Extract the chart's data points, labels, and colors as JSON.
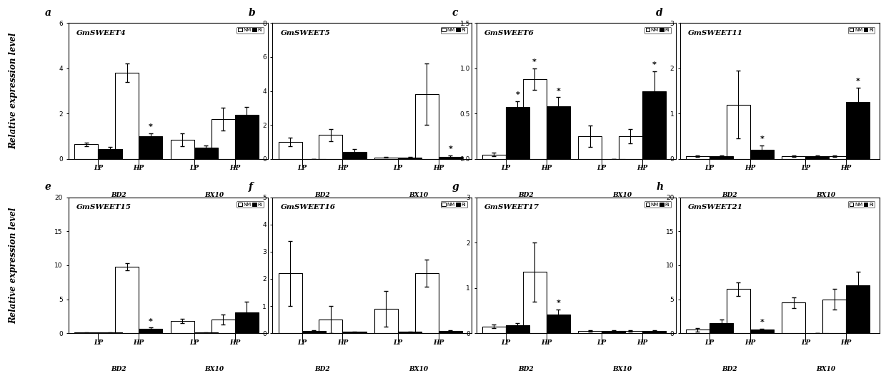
{
  "panels": [
    {
      "label": "a",
      "title": "GmSWEET4",
      "ylim": [
        0,
        6
      ],
      "yticks": [
        0,
        2,
        4,
        6
      ],
      "xticklabels": [
        "LP",
        "HP",
        "LP",
        "HP"
      ],
      "groups": [
        "BD2",
        "BX10"
      ],
      "NM": [
        0.65,
        3.8,
        0.85,
        1.75
      ],
      "Ri": [
        0.45,
        1.0,
        0.5,
        1.95
      ],
      "NM_err": [
        0.08,
        0.42,
        0.28,
        0.5
      ],
      "Ri_err": [
        0.08,
        0.12,
        0.08,
        0.35
      ],
      "star_NM": [
        false,
        false,
        false,
        false
      ],
      "star_Ri": [
        false,
        true,
        false,
        false
      ]
    },
    {
      "label": "b",
      "title": "GmSWEET5",
      "ylim": [
        0,
        8
      ],
      "yticks": [
        0,
        2,
        4,
        6,
        8
      ],
      "xticklabels": [
        "LP",
        "HP",
        "LP",
        "HP"
      ],
      "groups": [
        "BD2",
        "BX10"
      ],
      "NM": [
        1.0,
        1.4,
        0.08,
        3.8
      ],
      "Ri": [
        0.0,
        0.4,
        0.08,
        0.12
      ],
      "NM_err": [
        0.25,
        0.35,
        0.02,
        1.8
      ],
      "Ri_err": [
        0.0,
        0.2,
        0.02,
        0.08
      ],
      "star_NM": [
        false,
        false,
        false,
        false
      ],
      "star_Ri": [
        false,
        false,
        false,
        true
      ]
    },
    {
      "label": "c",
      "title": "GmSWEET6",
      "ylim": [
        0,
        1.5
      ],
      "yticks": [
        0,
        0.5,
        1.0,
        1.5
      ],
      "xticklabels": [
        "LP",
        "HP",
        "LP",
        "HP"
      ],
      "groups": [
        "BD2",
        "BX10"
      ],
      "NM": [
        0.05,
        0.88,
        0.25,
        0.25
      ],
      "Ri": [
        0.57,
        0.58,
        0.0,
        0.75
      ],
      "NM_err": [
        0.02,
        0.12,
        0.12,
        0.08
      ],
      "Ri_err": [
        0.07,
        0.1,
        0.0,
        0.22
      ],
      "star_NM": [
        false,
        true,
        false,
        false
      ],
      "star_Ri": [
        true,
        true,
        false,
        true
      ]
    },
    {
      "label": "d",
      "title": "GmSWEET11",
      "ylim": [
        0,
        3
      ],
      "yticks": [
        0,
        1,
        2,
        3
      ],
      "xticklabels": [
        "LP",
        "HP",
        "LP",
        "HP"
      ],
      "groups": [
        "BD2",
        "BX10"
      ],
      "NM": [
        0.06,
        1.2,
        0.06,
        0.06
      ],
      "Ri": [
        0.06,
        0.2,
        0.06,
        1.25
      ],
      "NM_err": [
        0.02,
        0.75,
        0.02,
        0.02
      ],
      "Ri_err": [
        0.02,
        0.1,
        0.02,
        0.32
      ],
      "star_NM": [
        false,
        false,
        false,
        false
      ],
      "star_Ri": [
        false,
        true,
        false,
        true
      ]
    },
    {
      "label": "e",
      "title": "GmSWEET15",
      "ylim": [
        0,
        20
      ],
      "yticks": [
        0,
        5,
        10,
        15,
        20
      ],
      "xticklabels": [
        "LP",
        "HP",
        "LP",
        "HP"
      ],
      "groups": [
        "BD2",
        "BX10"
      ],
      "NM": [
        0.1,
        9.8,
        1.8,
        2.0
      ],
      "Ri": [
        0.1,
        0.7,
        0.1,
        3.1
      ],
      "NM_err": [
        0.05,
        0.5,
        0.35,
        0.7
      ],
      "Ri_err": [
        0.05,
        0.12,
        0.05,
        1.5
      ],
      "star_NM": [
        false,
        false,
        false,
        false
      ],
      "star_Ri": [
        false,
        true,
        false,
        false
      ]
    },
    {
      "label": "f",
      "title": "GmSWEET16",
      "ylim": [
        0,
        5
      ],
      "yticks": [
        0,
        1,
        2,
        3,
        4,
        5
      ],
      "xticklabels": [
        "LP",
        "HP",
        "LP",
        "HP"
      ],
      "groups": [
        "BD2",
        "BX10"
      ],
      "NM": [
        2.2,
        0.5,
        0.9,
        2.2
      ],
      "Ri": [
        0.08,
        0.05,
        0.05,
        0.08
      ],
      "NM_err": [
        1.2,
        0.5,
        0.65,
        0.5
      ],
      "Ri_err": [
        0.04,
        0.02,
        0.02,
        0.04
      ],
      "star_NM": [
        false,
        false,
        false,
        false
      ],
      "star_Ri": [
        false,
        false,
        false,
        false
      ]
    },
    {
      "label": "g",
      "title": "GmSWEET17",
      "ylim": [
        0,
        3
      ],
      "yticks": [
        0,
        1,
        2,
        3
      ],
      "xticklabels": [
        "LP",
        "HP",
        "LP",
        "HP"
      ],
      "groups": [
        "BD2",
        "BX10"
      ],
      "NM": [
        0.15,
        1.35,
        0.05,
        0.05
      ],
      "Ri": [
        0.18,
        0.42,
        0.05,
        0.05
      ],
      "NM_err": [
        0.04,
        0.65,
        0.02,
        0.02
      ],
      "Ri_err": [
        0.04,
        0.1,
        0.02,
        0.02
      ],
      "star_NM": [
        false,
        false,
        false,
        false
      ],
      "star_Ri": [
        false,
        true,
        false,
        false
      ]
    },
    {
      "label": "h",
      "title": "GmSWEET21",
      "ylim": [
        0,
        20
      ],
      "yticks": [
        0,
        5,
        10,
        15,
        20
      ],
      "xticklabels": [
        "LP",
        "HP",
        "LP",
        "HP"
      ],
      "groups": [
        "BD2",
        "BX10"
      ],
      "NM": [
        0.5,
        6.5,
        4.5,
        5.0
      ],
      "Ri": [
        1.5,
        0.5,
        0.05,
        7.0
      ],
      "NM_err": [
        0.3,
        1.0,
        0.8,
        1.5
      ],
      "Ri_err": [
        0.5,
        0.2,
        0.02,
        2.0
      ],
      "star_NM": [
        false,
        false,
        false,
        false
      ],
      "star_Ri": [
        false,
        true,
        false,
        false
      ]
    }
  ],
  "ylabel": "Relative expression level",
  "bar_width": 0.32,
  "NM_color": "white",
  "Ri_color": "black",
  "edgecolor": "black"
}
